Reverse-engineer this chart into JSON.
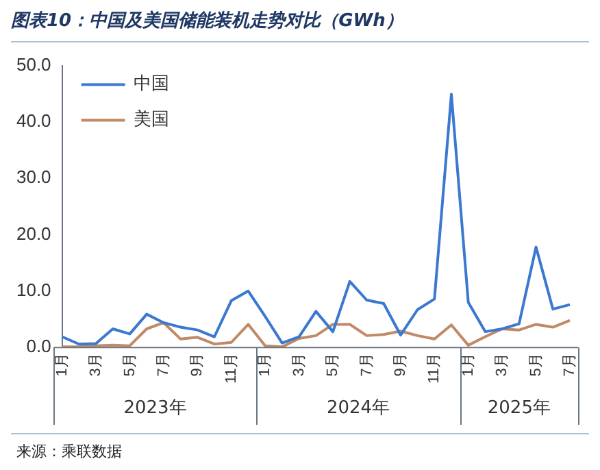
{
  "chart_data": {
    "type": "line",
    "title": "图表10：中国及美国储能装机走势对比（GWh）",
    "categories": [
      "1月",
      null,
      "3月",
      null,
      "5月",
      null,
      "7月",
      null,
      "9月",
      null,
      "11月",
      null,
      "1月",
      null,
      "3月",
      null,
      "5月",
      null,
      "7月",
      null,
      "9月",
      null,
      "11月",
      null,
      "1月",
      null,
      "3月",
      null,
      "5月",
      null,
      "7月"
    ],
    "series": [
      {
        "name": "中国",
        "color": "#3b78d0",
        "values": [
          1.9,
          0.6,
          0.7,
          3.3,
          2.4,
          5.9,
          4.4,
          3.6,
          3.1,
          1.9,
          8.3,
          10.0,
          5.5,
          0.8,
          1.9,
          6.4,
          2.8,
          11.7,
          8.4,
          7.8,
          2.2,
          6.7,
          8.6,
          44.9,
          8.0,
          2.8,
          3.3,
          4.2,
          17.8,
          6.8,
          7.6
        ]
      },
      {
        "name": "美国",
        "color": "#c08a66",
        "values": [
          0.1,
          0.1,
          0.3,
          0.4,
          0.3,
          3.3,
          4.4,
          1.5,
          1.8,
          0.6,
          0.9,
          4.1,
          0.3,
          0.1,
          1.6,
          2.1,
          4.1,
          4.1,
          2.1,
          2.3,
          2.9,
          2.1,
          1.5,
          4.0,
          0.4,
          1.9,
          3.3,
          3.1,
          4.1,
          3.6,
          4.8
        ]
      }
    ],
    "ylim": [
      0,
      50
    ],
    "yticks": [
      {
        "value": 0,
        "label": "0.0"
      },
      {
        "value": 10,
        "label": "10.0"
      },
      {
        "value": 20,
        "label": "20.0"
      },
      {
        "value": 30,
        "label": "30.0"
      },
      {
        "value": 40,
        "label": "40.0"
      },
      {
        "value": 50,
        "label": "50.0"
      }
    ],
    "legend": "top left",
    "grid": false,
    "marker": "none",
    "line_style": "solid",
    "annotations": [
      "2023年",
      "2024年",
      "2025年",
      "来源：乘联数据"
    ]
  }
}
